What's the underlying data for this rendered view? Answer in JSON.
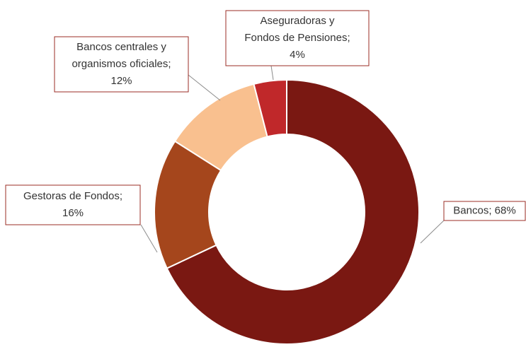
{
  "chart_data": {
    "type": "donut",
    "values": [
      68,
      16,
      12,
      4
    ],
    "value_labels": [
      [
        "Bancos; 68%"
      ],
      [
        "Gestoras de Fondos;",
        "16%"
      ],
      [
        "Bancos centrales y",
        "organismos  oficiales;",
        "12%"
      ],
      [
        "Aseguradoras y",
        "Fondos  de Pensiones;",
        "4%"
      ]
    ],
    "colors": [
      "#7a1812",
      "#a5461c",
      "#f9c08f",
      "#c0282a"
    ]
  }
}
